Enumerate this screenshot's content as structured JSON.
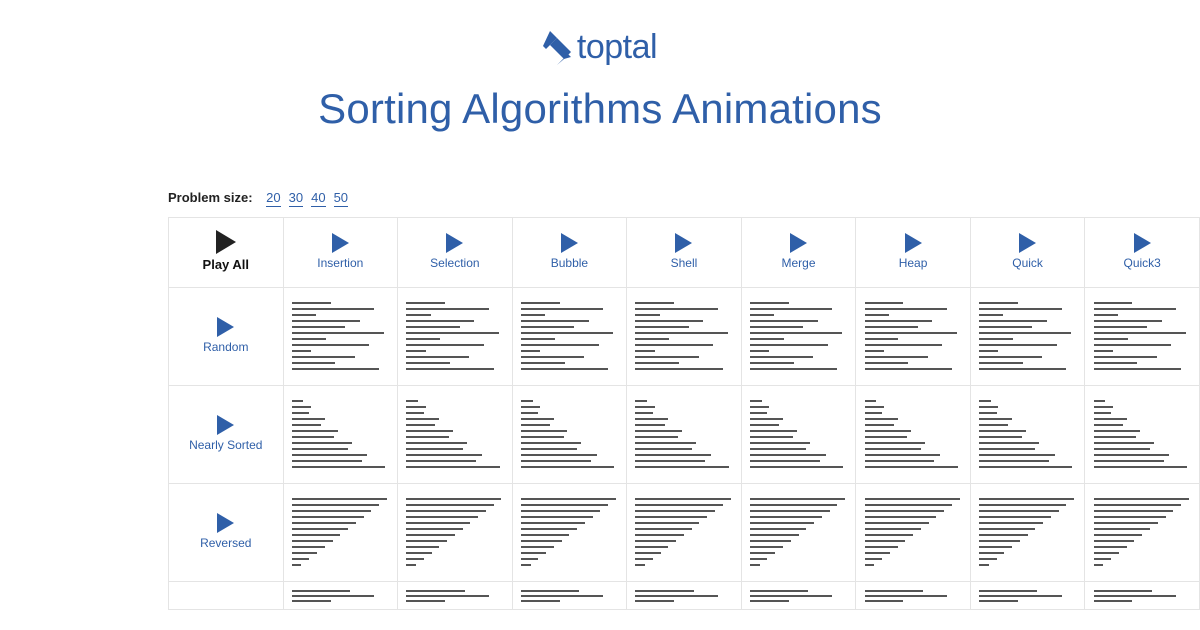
{
  "brand": {
    "name": "toptal",
    "color": "#2f5fa8"
  },
  "title": {
    "text": "Sorting Algorithms Animations",
    "color": "#2f5fa8"
  },
  "problemSize": {
    "label": "Problem size:",
    "options": [
      "20",
      "30",
      "40",
      "50"
    ],
    "link_color": "#2f5fa8"
  },
  "playAll": {
    "label": "Play All",
    "icon_color": "#222222"
  },
  "algorithms": [
    {
      "label": "Insertion",
      "icon_color": "#2f5fa8",
      "label_color": "#2f5fa8"
    },
    {
      "label": "Selection",
      "icon_color": "#2f5fa8",
      "label_color": "#2f5fa8"
    },
    {
      "label": "Bubble",
      "icon_color": "#2f5fa8",
      "label_color": "#2f5fa8"
    },
    {
      "label": "Shell",
      "icon_color": "#2f5fa8",
      "label_color": "#2f5fa8"
    },
    {
      "label": "Merge",
      "icon_color": "#2f5fa8",
      "label_color": "#2f5fa8"
    },
    {
      "label": "Heap",
      "icon_color": "#2f5fa8",
      "label_color": "#2f5fa8"
    },
    {
      "label": "Quick",
      "icon_color": "#2f5fa8",
      "label_color": "#2f5fa8"
    },
    {
      "label": "Quick3",
      "icon_color": "#2f5fa8",
      "label_color": "#2f5fa8"
    }
  ],
  "cases": [
    {
      "label": "Random",
      "icon_color": "#2f5fa8",
      "label_color": "#2f5fa8",
      "pattern": "random"
    },
    {
      "label": "Nearly Sorted",
      "icon_color": "#2f5fa8",
      "label_color": "#2f5fa8",
      "pattern": "nearly"
    },
    {
      "label": "Reversed",
      "icon_color": "#2f5fa8",
      "label_color": "#2f5fa8",
      "pattern": "reversed"
    }
  ],
  "viz": {
    "bar_color": "#555555",
    "bar_count": 12,
    "patterns": {
      "random": [
        40,
        85,
        25,
        70,
        55,
        95,
        35,
        80,
        20,
        65,
        45,
        90
      ],
      "nearly": [
        12,
        20,
        18,
        34,
        30,
        48,
        44,
        62,
        58,
        78,
        72,
        96
      ],
      "reversed": [
        98,
        90,
        82,
        74,
        66,
        58,
        50,
        42,
        34,
        26,
        18,
        10
      ],
      "trim": [
        60,
        85,
        40
      ]
    }
  }
}
